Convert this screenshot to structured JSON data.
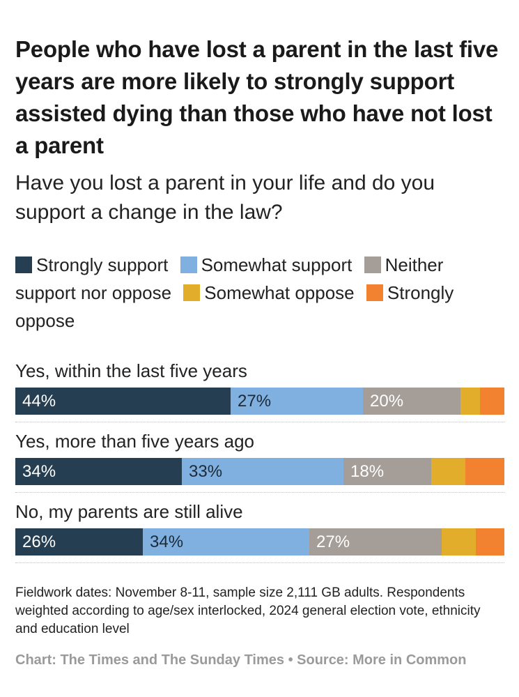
{
  "header": {
    "title": "People who have lost a parent in the last five years are more likely to strongly support assisted dying than those who have not lost a parent",
    "subtitle": "Have you lost a parent in your life and do you support a change in the law?"
  },
  "colors": {
    "strongly_support": "#253e52",
    "somewhat_support": "#7fb0e0",
    "neither": "#a59d98",
    "somewhat_oppose": "#e3ad2c",
    "strongly_oppose": "#f2822f"
  },
  "chart_data": {
    "type": "bar",
    "orientation": "horizontal",
    "stacked": true,
    "normalized_to": 100,
    "title": "People who have lost a parent in the last five years are more likely to strongly support assisted dying than those who have not lost a parent",
    "subtitle": "Have you lost a parent in your life and do you support a change in the law?",
    "categories": [
      "Yes, within the last five years",
      "Yes, more than five years ago",
      "No, my parents are still alive"
    ],
    "series": [
      {
        "name": "Strongly support",
        "color": "#253e52",
        "values": [
          44,
          34,
          26
        ],
        "labels": [
          "44%",
          "34%",
          "26%"
        ]
      },
      {
        "name": "Somewhat support",
        "color": "#7fb0e0",
        "values": [
          27,
          33,
          34
        ],
        "labels": [
          "27%",
          "33%",
          "34%"
        ]
      },
      {
        "name": "Neither support nor oppose",
        "color": "#a59d98",
        "values": [
          20,
          18,
          27
        ],
        "labels": [
          "20%",
          "18%",
          "27%"
        ]
      },
      {
        "name": "Somewhat oppose",
        "color": "#e3ad2c",
        "values": [
          4,
          7,
          7
        ],
        "labels": [
          "",
          "",
          ""
        ]
      },
      {
        "name": "Strongly oppose",
        "color": "#f2822f",
        "values": [
          5,
          7,
          6
        ],
        "labels": [
          "",
          "",
          ""
        ]
      }
    ],
    "legend_position": "top",
    "grid": false
  },
  "footer": {
    "notes": "Fieldwork dates: November 8-11, sample size 2,111 GB adults. Respondents weighted according to age/sex interlocked, 2024 general election vote, ethnicity and education level",
    "credit": "Chart: The Times and The Sunday Times • Source: More in Common"
  }
}
